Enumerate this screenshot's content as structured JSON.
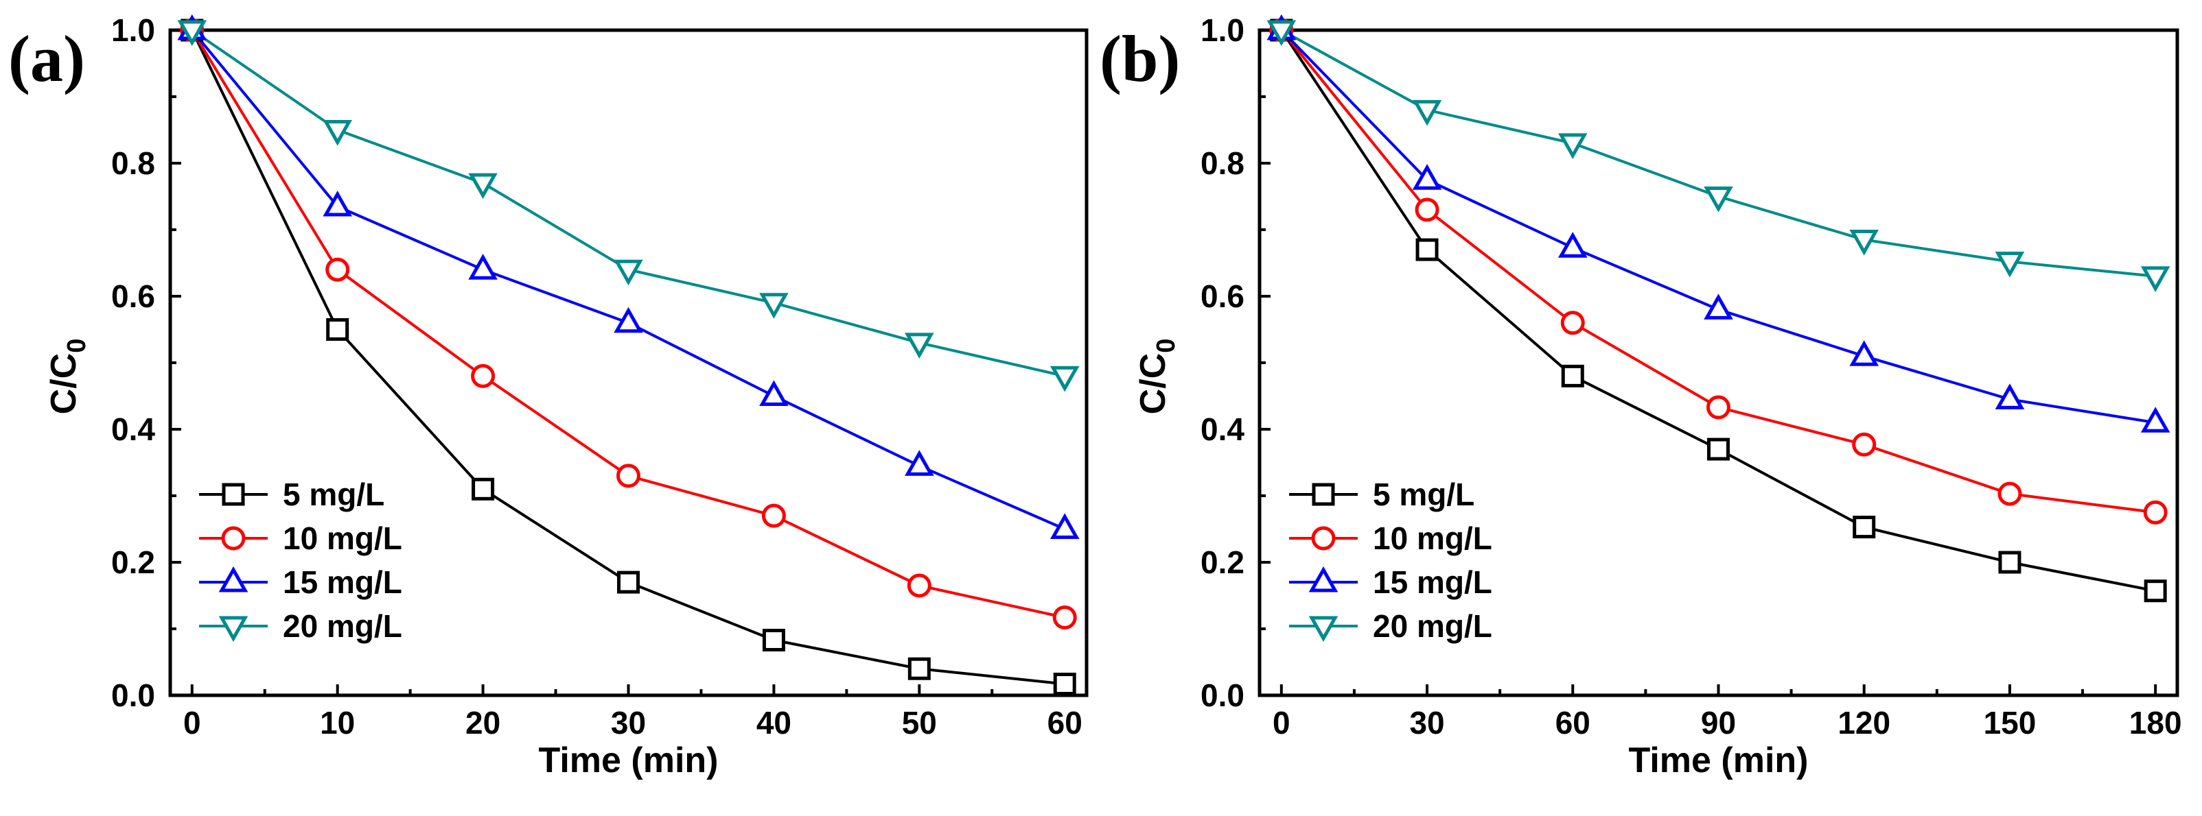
{
  "chart_data": [
    {
      "id": "a",
      "panel_label": "(a)",
      "type": "line",
      "xlabel": "Time (min)",
      "ylabel": "C/C",
      "ylabel_sub": "0",
      "xlim": [
        -1.5,
        61.5
      ],
      "ylim": [
        0,
        1.0
      ],
      "xticks": [
        0,
        10,
        20,
        30,
        40,
        50,
        60
      ],
      "yticks": [
        "0.0",
        "0.2",
        "0.4",
        "0.6",
        "0.8",
        "1.0"
      ],
      "x": [
        0,
        10,
        20,
        30,
        40,
        50,
        60
      ],
      "legend_position": "bottom-left",
      "series": [
        {
          "name": "5 mg/L",
          "marker": "square",
          "color": "#000000",
          "values": [
            1.0,
            0.55,
            0.31,
            0.17,
            0.083,
            0.04,
            0.017
          ]
        },
        {
          "name": "10 mg/L",
          "marker": "circle",
          "color": "#ff0000",
          "values": [
            1.0,
            0.64,
            0.48,
            0.33,
            0.27,
            0.165,
            0.117
          ]
        },
        {
          "name": "15 mg/L",
          "marker": "triangle-up",
          "color": "#0000ff",
          "values": [
            1.0,
            0.735,
            0.64,
            0.56,
            0.45,
            0.345,
            0.25
          ]
        },
        {
          "name": "20 mg/L",
          "marker": "triangle-down",
          "color": "#008b8b",
          "values": [
            1.0,
            0.85,
            0.77,
            0.64,
            0.59,
            0.53,
            0.48
          ]
        }
      ]
    },
    {
      "id": "b",
      "panel_label": "(b)",
      "type": "line",
      "xlabel": "Time (min)",
      "ylabel": "C/C",
      "ylabel_sub": "0",
      "xlim": [
        -4.5,
        184.5
      ],
      "ylim": [
        0,
        1.0
      ],
      "xticks": [
        0,
        30,
        60,
        90,
        120,
        150,
        180
      ],
      "yticks": [
        "0.0",
        "0.2",
        "0.4",
        "0.6",
        "0.8",
        "1.0"
      ],
      "x": [
        0,
        30,
        60,
        90,
        120,
        150,
        180
      ],
      "legend_position": "bottom-left",
      "series": [
        {
          "name": "5 mg/L",
          "marker": "square",
          "color": "#000000",
          "values": [
            1.0,
            0.67,
            0.48,
            0.37,
            0.253,
            0.2,
            0.157
          ]
        },
        {
          "name": "10 mg/L",
          "marker": "circle",
          "color": "#ff0000",
          "values": [
            1.0,
            0.73,
            0.56,
            0.433,
            0.377,
            0.303,
            0.275
          ]
        },
        {
          "name": "15 mg/L",
          "marker": "triangle-up",
          "color": "#0000ff",
          "values": [
            1.0,
            0.775,
            0.673,
            0.58,
            0.51,
            0.445,
            0.41
          ]
        },
        {
          "name": "20 mg/L",
          "marker": "triangle-down",
          "color": "#008b8b",
          "values": [
            1.0,
            0.88,
            0.83,
            0.75,
            0.685,
            0.652,
            0.63
          ]
        }
      ]
    }
  ]
}
